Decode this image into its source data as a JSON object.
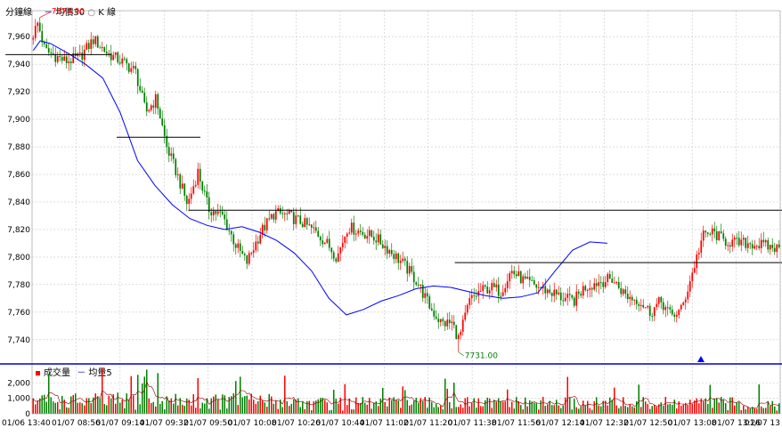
{
  "main_legend": {
    "label1": "分鐘線",
    "sep": "－",
    "label2": "均價30",
    "label3": "K 線"
  },
  "volume_legend": {
    "label1": "成交量",
    "sep": "－",
    "label2": "均量5"
  },
  "colors": {
    "up": "#ff0000",
    "down": "#008000",
    "ma": "#0000ff",
    "grid": "#c8c8c8",
    "separator": "#0000cc",
    "trend": "#000000"
  },
  "chart_data": [
    {
      "type": "candlestick",
      "ylim": [
        7725,
        7975
      ],
      "yticks": [
        7740,
        7760,
        7780,
        7800,
        7820,
        7840,
        7860,
        7880,
        7900,
        7920,
        7940,
        7960
      ],
      "ytick_labels": [
        "7,740",
        "7,760",
        "7,780",
        "7,800",
        "7,820",
        "7,840",
        "7,860",
        "7,880",
        "7,900",
        "7,920",
        "7,940",
        "7,960"
      ],
      "high_label": "7974.00",
      "low_label": "7731.00",
      "high_value": 7974,
      "low_value": 7731,
      "ma_series": {
        "name": "均價30",
        "points": [
          [
            0,
            7950
          ],
          [
            4,
            7957
          ],
          [
            10,
            7955
          ],
          [
            20,
            7948
          ],
          [
            30,
            7940
          ],
          [
            40,
            7930
          ],
          [
            50,
            7905
          ],
          [
            60,
            7870
          ],
          [
            70,
            7852
          ],
          [
            80,
            7838
          ],
          [
            90,
            7828
          ],
          [
            100,
            7823
          ],
          [
            110,
            7820
          ],
          [
            120,
            7822
          ],
          [
            130,
            7818
          ],
          [
            140,
            7812
          ],
          [
            150,
            7803
          ],
          [
            160,
            7790
          ],
          [
            170,
            7770
          ],
          [
            180,
            7758
          ],
          [
            190,
            7762
          ],
          [
            200,
            7768
          ],
          [
            210,
            7772
          ],
          [
            220,
            7777
          ],
          [
            230,
            7779
          ],
          [
            240,
            7778
          ],
          [
            250,
            7775
          ],
          [
            260,
            7772
          ],
          [
            270,
            7770
          ],
          [
            280,
            7771
          ],
          [
            290,
            7774
          ],
          [
            300,
            7790
          ],
          [
            310,
            7805
          ],
          [
            320,
            7811
          ],
          [
            330,
            7810
          ]
        ]
      },
      "trend_lines": [
        {
          "y": 7947
        },
        {
          "y": 7887
        },
        {
          "y": 7834
        },
        {
          "y": 7796
        }
      ],
      "marker": {
        "shape": "triangle",
        "color": "#0000ff"
      }
    },
    {
      "type": "bar",
      "name": "成交量",
      "ylim": [
        0,
        2600
      ],
      "yticks": [
        0,
        1000,
        2000
      ],
      "ytick_labels": [
        "0",
        "1,000",
        "2,000"
      ],
      "ma_name": "均量5"
    }
  ],
  "x_labels": [
    "01/06 13:40",
    "01/07 08:56",
    "01/07 09:14",
    "01/07 09:32",
    "01/07 09:50",
    "01/07 10:08",
    "01/07 10:26",
    "01/07 10:44",
    "01/07 11:02",
    "01/07 11:20",
    "01/07 11:38",
    "01/07 11:56",
    "01/07 12:14",
    "01/07 12:32",
    "01/07 12:50",
    "01/07 13:08",
    "01/07 13:26",
    "01/07 13"
  ]
}
